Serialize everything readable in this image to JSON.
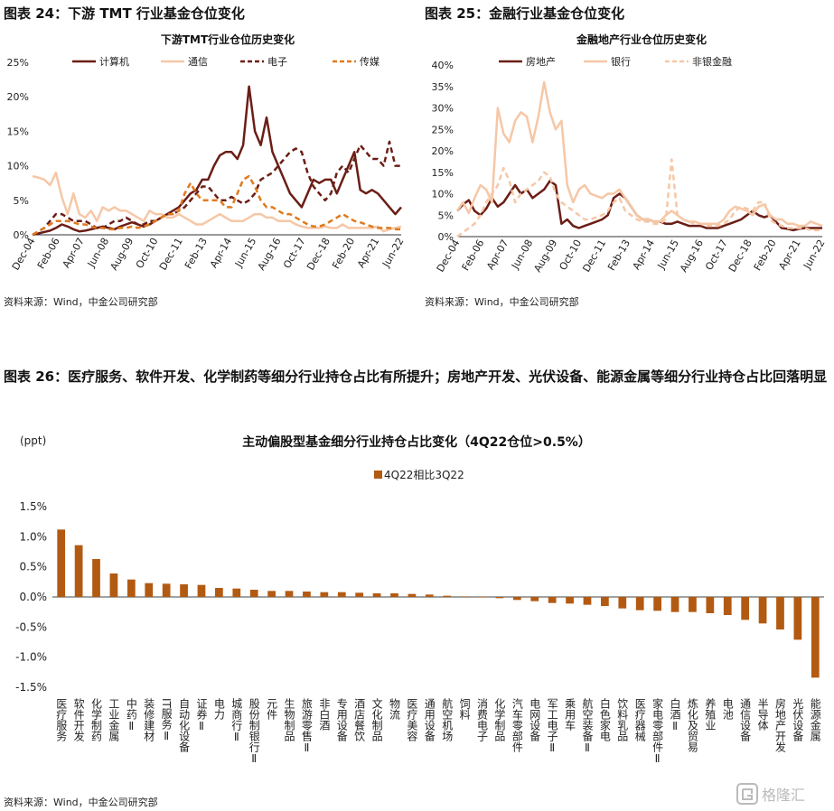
{
  "fig24": {
    "heading": "图表 24：下游 TMT 行业基金仓位变化",
    "source": "资料来源：Wind，中金公司研究部"
  },
  "fig25": {
    "heading": "图表 25：金融行业基金仓位变化",
    "source": "资料来源：Wind，中金公司研究部"
  },
  "fig26": {
    "heading": "图表 26：医疗服务、软件开发、化学制药等细分行业持仓占比有所提升；房地产开发、光伏设备、能源金属等细分行业持仓占比回落明显",
    "source": "资料来源：Wind，中金公司研究部"
  },
  "watermark": {
    "text": "格隆汇"
  },
  "chart_data": [
    {
      "type": "line",
      "title": "下游TMT行业仓位历史变化",
      "x_ticks": [
        "Dec-04",
        "Feb-06",
        "Apr-07",
        "Jun-08",
        "Aug-09",
        "Oct-10",
        "Dec-11",
        "Feb-13",
        "Apr-14",
        "Jun-15",
        "Aug-16",
        "Oct-17",
        "Dec-18",
        "Feb-20",
        "Apr-21",
        "Jun-22"
      ],
      "y_ticks": [
        "0%",
        "5%",
        "10%",
        "15%",
        "20%",
        "25%"
      ],
      "ylim": [
        0,
        25
      ],
      "colors": {
        "计算机": "#6b1e16",
        "通信": "#f6c7a6",
        "电子": "#6b1e16",
        "传媒": "#e07a1e"
      },
      "series": [
        {
          "name": "计算机",
          "style": "solid",
          "values": [
            0,
            0.2,
            0.4,
            0.6,
            1,
            1.5,
            1.2,
            0.8,
            0.5,
            0.6,
            0.8,
            1,
            1.2,
            1,
            0.8,
            1.2,
            1.5,
            1.8,
            1.5,
            1.2,
            1.5,
            2,
            2.5,
            3,
            3.5,
            4,
            5,
            6,
            6.5,
            8,
            8,
            10,
            11.5,
            12,
            12,
            11,
            13,
            21.5,
            15,
            13,
            17,
            12,
            10,
            8,
            6,
            5,
            4,
            6,
            8,
            7.5,
            8,
            8,
            6,
            8,
            10,
            12,
            6.5,
            6,
            6.5,
            6,
            5,
            4,
            3,
            4
          ]
        },
        {
          "name": "通信",
          "style": "solid",
          "values": [
            8.5,
            8.3,
            8,
            7.2,
            9,
            5.5,
            3,
            6,
            3,
            2.5,
            3.5,
            2,
            4,
            3.5,
            4,
            3.5,
            3.5,
            3,
            2.5,
            2,
            3.5,
            3,
            3,
            2.5,
            2.5,
            3,
            2.5,
            2,
            1.5,
            1.5,
            2,
            2.5,
            3,
            2.5,
            2,
            2,
            2,
            2.5,
            3,
            3,
            2.5,
            2.5,
            2,
            2,
            2,
            1.5,
            1.2,
            1,
            1,
            1,
            1.2,
            1,
            1,
            1.5,
            1,
            1,
            1,
            1,
            1,
            1.2,
            0.5,
            0.8,
            1,
            1.2
          ]
        },
        {
          "name": "电子",
          "style": "dash",
          "values": [
            0,
            0.5,
            1,
            2,
            3,
            3,
            2.5,
            2,
            2,
            2,
            1.5,
            1,
            1,
            1.5,
            2,
            2,
            2.5,
            2,
            1.5,
            1.5,
            2,
            2,
            2.5,
            3,
            3,
            3.5,
            4,
            5,
            6,
            7,
            7,
            6,
            5,
            5,
            5.5,
            5,
            4.5,
            5,
            6,
            8,
            8.5,
            9,
            10,
            11,
            12,
            12.5,
            12,
            9,
            7,
            6,
            5,
            6,
            9,
            10,
            9,
            11,
            13,
            12,
            11,
            11,
            10,
            13.5,
            10,
            10
          ]
        },
        {
          "name": "传媒",
          "style": "dash",
          "values": [
            0,
            0.5,
            1,
            1.5,
            2,
            2,
            2,
            1.8,
            1.5,
            1.5,
            1.2,
            1,
            1,
            0.8,
            0.8,
            1,
            1,
            1.2,
            1,
            1.2,
            1.5,
            2,
            2.5,
            3,
            3,
            3.5,
            6,
            7.5,
            6,
            5,
            5,
            5,
            5,
            4,
            4,
            6,
            8,
            8.5,
            7,
            5,
            4,
            4,
            3.5,
            3,
            3,
            2.5,
            2,
            1.5,
            1.2,
            1.2,
            1.5,
            2,
            2.5,
            3,
            2.5,
            2,
            1.8,
            1.5,
            1.2,
            1,
            1,
            1,
            0.8,
            0.8
          ]
        }
      ]
    },
    {
      "type": "line",
      "title": "金融地产行业仓位历史变化",
      "x_ticks": [
        "Dec-04",
        "Feb-06",
        "Apr-07",
        "Jun-08",
        "Aug-09",
        "Oct-10",
        "Dec-11",
        "Feb-13",
        "Apr-14",
        "Jun-15",
        "Aug-16",
        "Oct-17",
        "Dec-18",
        "Feb-20",
        "Apr-21",
        "Jun-22"
      ],
      "y_ticks": [
        "0%",
        "5%",
        "10%",
        "15%",
        "20%",
        "25%",
        "30%",
        "35%",
        "40%"
      ],
      "ylim": [
        0,
        40
      ],
      "colors": {
        "房地产": "#6b1e16",
        "银行": "#f6c7a6",
        "非银金融": "#f6c7a6"
      },
      "series": [
        {
          "name": "房地产",
          "style": "solid",
          "values": [
            6,
            7.5,
            8.5,
            6,
            5,
            6.5,
            9,
            7,
            8,
            10,
            12,
            10,
            11,
            9,
            10,
            11,
            13,
            12,
            3,
            4,
            2.5,
            2,
            2.5,
            3,
            3.5,
            4,
            5,
            9,
            10,
            9,
            7,
            5,
            4,
            4,
            3.5,
            3.5,
            3,
            3,
            3.5,
            3,
            2.5,
            2.5,
            2.5,
            2,
            2,
            2,
            2.5,
            3,
            3.5,
            4,
            5,
            6,
            5,
            4.5,
            5,
            3.5,
            2,
            1.8,
            1.5,
            1.8,
            2,
            2,
            2,
            2
          ]
        },
        {
          "name": "银行",
          "style": "solid",
          "values": [
            6,
            8,
            5.5,
            9,
            12,
            11,
            8,
            30,
            24,
            22,
            27,
            29,
            28,
            22,
            28,
            36,
            29,
            25,
            27,
            12,
            8,
            11,
            12,
            10,
            9.5,
            9,
            10,
            10,
            11,
            9,
            7,
            5,
            4,
            4,
            3.5,
            3.5,
            5,
            6,
            5,
            4,
            3.5,
            3.5,
            3,
            3,
            3,
            3,
            4,
            6,
            7,
            6.5,
            6,
            5,
            7,
            7.5,
            5,
            4,
            4,
            3,
            3,
            2.5,
            2.5,
            3.5,
            3,
            2.5
          ]
        },
        {
          "name": "非银金融",
          "style": "dash",
          "values": [
            0,
            1,
            2,
            3,
            5,
            8,
            10,
            12,
            16,
            13,
            8,
            10,
            11,
            12,
            13,
            15,
            14,
            10,
            8,
            7,
            6,
            5,
            4,
            4,
            4.5,
            5,
            6,
            8,
            9,
            6,
            5,
            4,
            3.5,
            3.5,
            3,
            3,
            4,
            18,
            5,
            4,
            3.5,
            3,
            3,
            2.5,
            2.5,
            2.5,
            3,
            4,
            6,
            7,
            6.5,
            6,
            8,
            8,
            4,
            3,
            2.5,
            2,
            2,
            2,
            2,
            1.5,
            1.5,
            1.5
          ]
        }
      ]
    },
    {
      "type": "bar",
      "title": "主动偏股型基金细分行业持仓占比变化（4Q22仓位>0.5%）",
      "unit": "(ppt)",
      "legend": "4Q22相比3Q22",
      "color": "#b35a12",
      "y_ticks": [
        "1.5%",
        "1.0%",
        "0.5%",
        "0.0%",
        "-0.5%",
        "-1.0%",
        "-1.5%"
      ],
      "ylim": [
        -1.5,
        1.5
      ],
      "categories": [
        "医疗服务",
        "软件开发",
        "化学制药",
        "工业金属",
        "中药Ⅱ",
        "装修建材",
        "IT服务Ⅱ",
        "自动化设备",
        "证券Ⅱ",
        "电力",
        "城商行Ⅱ",
        "股份制银行Ⅱ",
        "元件",
        "生物制品",
        "旅游零售Ⅱ",
        "非白酒",
        "专用设备",
        "酒店餐饮",
        "文化制品",
        "物流",
        "医疗美容",
        "通用设备",
        "航空机场",
        "饲料",
        "消费电子",
        "化学制品",
        "汽车零部件",
        "电网设备",
        "军工电子Ⅱ",
        "乘用车",
        "航空装备Ⅱ",
        "白色家电",
        "饮料乳品",
        "医疗器械",
        "家电零部件Ⅱ",
        "白酒Ⅱ",
        "炼化及贸易",
        "养殖业",
        "电池",
        "通信设备",
        "半导体",
        "房地产开发",
        "光伏设备",
        "能源金属"
      ],
      "values": [
        1.12,
        0.86,
        0.63,
        0.39,
        0.29,
        0.23,
        0.22,
        0.21,
        0.2,
        0.15,
        0.14,
        0.12,
        0.1,
        0.1,
        0.09,
        0.08,
        0.08,
        0.07,
        0.06,
        0.06,
        0.05,
        0.04,
        0.02,
        0.01,
        0,
        -0.02,
        -0.05,
        -0.07,
        -0.1,
        -0.11,
        -0.13,
        -0.15,
        -0.19,
        -0.22,
        -0.23,
        -0.25,
        -0.25,
        -0.27,
        -0.3,
        -0.38,
        -0.44,
        -0.54,
        -0.71,
        -1.34
      ]
    }
  ]
}
